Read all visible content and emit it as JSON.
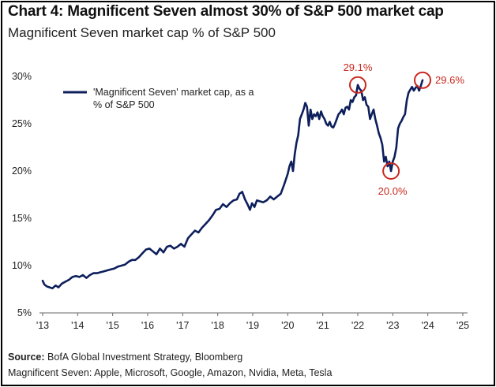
{
  "title": "Chart 4: Magnificent Seven almost 30% of S&P 500 market cap",
  "subtitle": "Magnificent Seven market cap % of S&P 500",
  "footer": {
    "source_label": "Source:",
    "source_text": "BofA Global Investment Strategy, Bloomberg",
    "note": "Magnificent Seven: Apple, Microsoft, Google, Amazon, Nvidia, Meta, Tesla"
  },
  "colors": {
    "line": "#0d1f5c",
    "highlight": "#c8281e",
    "axis": "#666666",
    "text": "#222222"
  },
  "chart_data": {
    "type": "line",
    "title": "Chart 4: Magnificent Seven almost 30% of S&P 500 market cap",
    "subtitle": "Magnificent Seven market cap % of S&P 500",
    "xlabel": "",
    "ylabel": "",
    "xlim": [
      2013,
      2025
    ],
    "ylim": [
      5,
      30
    ],
    "x_ticks": [
      2013,
      2014,
      2015,
      2016,
      2017,
      2018,
      2019,
      2020,
      2021,
      2022,
      2023,
      2024,
      2025
    ],
    "x_tick_labels": [
      "'13",
      "'14",
      "'15",
      "'16",
      "'17",
      "'18",
      "'19",
      "'20",
      "'21",
      "'22",
      "'23",
      "'24",
      "'25"
    ],
    "y_ticks": [
      5,
      10,
      15,
      20,
      25,
      30
    ],
    "y_tick_labels": [
      "5%",
      "10%",
      "15%",
      "20%",
      "25%",
      "30%"
    ],
    "grid": false,
    "legend": {
      "position": "top-left",
      "entries": [
        "'Magnificent Seven' market cap, as a % of S&P 500"
      ]
    },
    "series": [
      {
        "name": "'Magnificent Seven' market cap, as a % of S&P 500",
        "x": [
          2013.0,
          2013.05,
          2013.12,
          2013.2,
          2013.28,
          2013.37,
          2013.45,
          2013.55,
          2013.65,
          2013.75,
          2013.85,
          2013.95,
          2014.05,
          2014.15,
          2014.25,
          2014.35,
          2014.45,
          2014.55,
          2014.65,
          2014.75,
          2014.85,
          2014.95,
          2015.05,
          2015.15,
          2015.25,
          2015.35,
          2015.45,
          2015.55,
          2015.65,
          2015.75,
          2015.85,
          2015.95,
          2016.05,
          2016.15,
          2016.25,
          2016.35,
          2016.45,
          2016.55,
          2016.65,
          2016.75,
          2016.85,
          2016.95,
          2017.05,
          2017.15,
          2017.25,
          2017.35,
          2017.45,
          2017.55,
          2017.65,
          2017.75,
          2017.85,
          2017.95,
          2018.05,
          2018.15,
          2018.25,
          2018.35,
          2018.45,
          2018.55,
          2018.62,
          2018.7,
          2018.78,
          2018.85,
          2018.92,
          2018.98,
          2019.05,
          2019.12,
          2019.2,
          2019.3,
          2019.4,
          2019.5,
          2019.6,
          2019.7,
          2019.8,
          2019.9,
          2020.0,
          2020.05,
          2020.1,
          2020.15,
          2020.2,
          2020.25,
          2020.3,
          2020.35,
          2020.4,
          2020.45,
          2020.5,
          2020.55,
          2020.6,
          2020.65,
          2020.7,
          2020.75,
          2020.8,
          2020.85,
          2020.9,
          2020.95,
          2021.0,
          2021.05,
          2021.1,
          2021.15,
          2021.2,
          2021.25,
          2021.3,
          2021.35,
          2021.4,
          2021.45,
          2021.5,
          2021.55,
          2021.6,
          2021.65,
          2021.7,
          2021.75,
          2021.8,
          2021.85,
          2021.9,
          2021.95,
          2022.0,
          2022.05,
          2022.1,
          2022.15,
          2022.2,
          2022.25,
          2022.3,
          2022.35,
          2022.4,
          2022.45,
          2022.5,
          2022.55,
          2022.6,
          2022.65,
          2022.7,
          2022.75,
          2022.8,
          2022.85,
          2022.9,
          2022.95,
          2023.0,
          2023.05,
          2023.1,
          2023.15,
          2023.2,
          2023.25,
          2023.3,
          2023.35,
          2023.4,
          2023.45,
          2023.5,
          2023.55,
          2023.6,
          2023.65,
          2023.7,
          2023.75,
          2023.8,
          2023.85
        ],
        "y": [
          8.4,
          8.0,
          7.8,
          7.7,
          7.6,
          7.9,
          7.7,
          8.1,
          8.3,
          8.5,
          8.8,
          8.9,
          8.8,
          9.0,
          8.7,
          9.0,
          9.2,
          9.2,
          9.3,
          9.4,
          9.5,
          9.6,
          9.7,
          9.9,
          10.0,
          10.1,
          10.4,
          10.6,
          10.6,
          10.9,
          11.3,
          11.7,
          11.8,
          11.5,
          11.2,
          11.8,
          11.4,
          12.0,
          12.1,
          11.8,
          12.0,
          12.3,
          12.0,
          12.9,
          13.3,
          13.7,
          13.5,
          14.0,
          14.4,
          14.8,
          15.3,
          15.9,
          16.0,
          16.5,
          16.2,
          16.6,
          16.9,
          17.0,
          17.6,
          17.8,
          17.0,
          16.5,
          15.9,
          16.6,
          16.2,
          16.9,
          16.8,
          16.7,
          16.9,
          17.3,
          17.0,
          17.3,
          17.6,
          18.6,
          19.7,
          20.5,
          21.0,
          20.0,
          21.8,
          23.0,
          23.8,
          25.5,
          26.0,
          26.5,
          27.2,
          26.8,
          24.8,
          26.5,
          25.5,
          26.0,
          25.8,
          26.2,
          25.5,
          26.3,
          25.8,
          25.5,
          25.0,
          24.8,
          25.2,
          24.7,
          24.6,
          25.0,
          25.5,
          26.0,
          26.2,
          26.5,
          26.0,
          26.7,
          26.8,
          26.5,
          27.5,
          27.3,
          27.8,
          28.0,
          29.1,
          28.7,
          28.5,
          27.5,
          27.8,
          27.0,
          26.8,
          25.5,
          26.0,
          26.5,
          25.5,
          24.8,
          24.0,
          23.5,
          22.8,
          21.0,
          21.5,
          20.5,
          21.0,
          20.0,
          21.0,
          21.5,
          22.5,
          24.5,
          25.0,
          25.3,
          25.7,
          26.0,
          27.5,
          28.3,
          28.6,
          28.9,
          28.5,
          28.8,
          29.0,
          28.5,
          29.0,
          29.6
        ]
      }
    ],
    "annotations": [
      {
        "label": "29.1%",
        "x": 2022.0,
        "y": 29.1
      },
      {
        "label": "20.0%",
        "x": 2022.95,
        "y": 20.0
      },
      {
        "label": "29.6%",
        "x": 2023.85,
        "y": 29.6
      }
    ]
  }
}
